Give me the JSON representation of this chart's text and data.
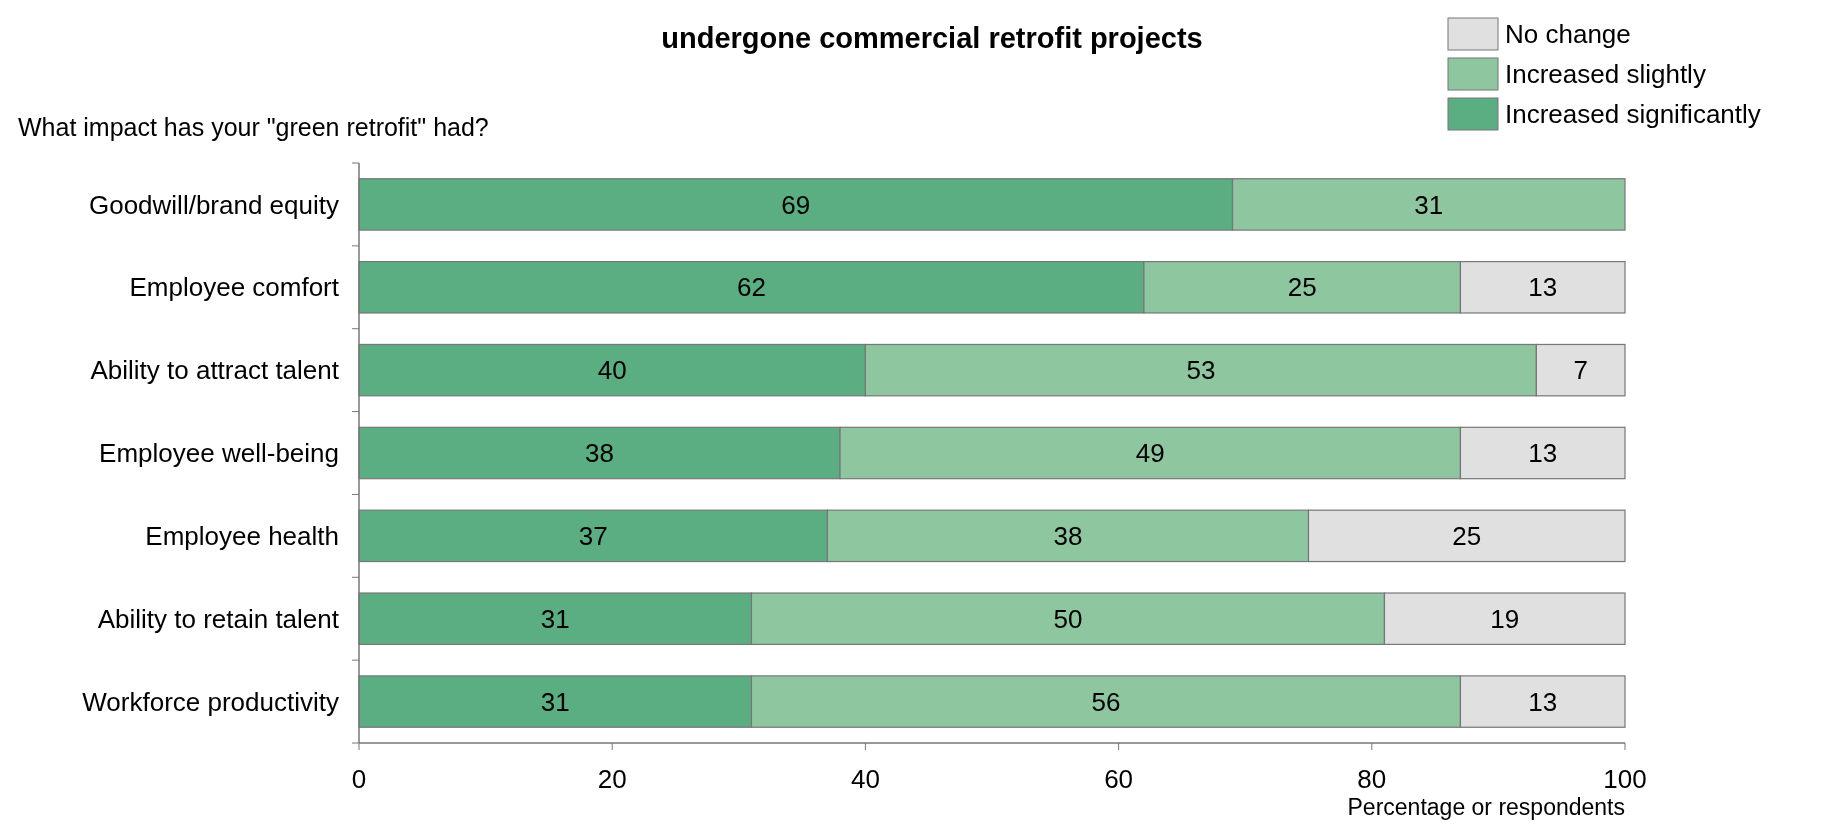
{
  "chart_data": {
    "type": "bar",
    "orientation": "horizontal",
    "stacked": true,
    "title": "undergone commercial retrofit projects",
    "subtitle": "What impact has your \"green retrofit\" had?",
    "xlabel": "Percentage or respondents",
    "categories": [
      "Goodwill/brand equity",
      "Employee comfort",
      "Ability to attract talent",
      "Employee well-being",
      "Employee health",
      "Ability to retain talent",
      "Workforce productivity"
    ],
    "series": [
      {
        "name": "Increased significantly",
        "color": "#5aae82",
        "values": [
          69,
          62,
          40,
          38,
          37,
          31,
          31
        ]
      },
      {
        "name": "Increased slightly",
        "color": "#8dc69f",
        "values": [
          31,
          25,
          53,
          49,
          38,
          50,
          56
        ]
      },
      {
        "name": "No change",
        "color": "#e0e0e0",
        "values": [
          null,
          13,
          7,
          13,
          25,
          19,
          13
        ]
      }
    ],
    "xlim": [
      0,
      100
    ],
    "xticks": [
      0,
      20,
      40,
      60,
      80,
      100
    ],
    "data_labels": true,
    "legend": "top right",
    "grid": false
  }
}
